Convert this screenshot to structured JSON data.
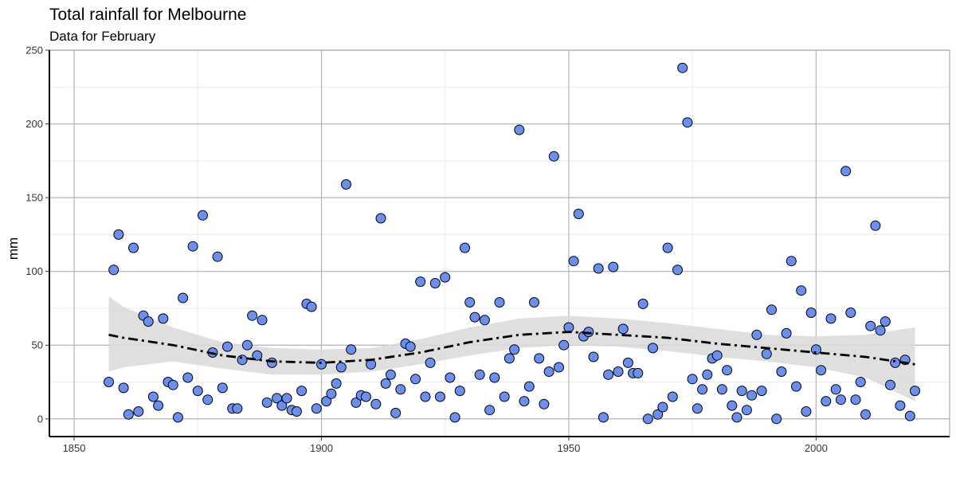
{
  "chart_data": {
    "type": "scatter",
    "title": "Total rainfall for Melbourne",
    "subtitle": "Data for February",
    "xlabel": "",
    "ylabel": "mm",
    "xlim": [
      1845,
      2027
    ],
    "ylim": [
      -12,
      250
    ],
    "x_ticks": [
      1850,
      1900,
      1950,
      2000
    ],
    "y_ticks": [
      0,
      50,
      100,
      150,
      200,
      250
    ],
    "grid": true,
    "legend": "none",
    "point_color": "#6b8ff0",
    "smooth_color": "#000000",
    "band_color": "#d9d9d9",
    "points": [
      [
        1857,
        25
      ],
      [
        1858,
        101
      ],
      [
        1859,
        125
      ],
      [
        1860,
        21
      ],
      [
        1861,
        3
      ],
      [
        1862,
        116
      ],
      [
        1863,
        5
      ],
      [
        1864,
        70
      ],
      [
        1865,
        66
      ],
      [
        1866,
        15
      ],
      [
        1867,
        9
      ],
      [
        1868,
        68
      ],
      [
        1869,
        25
      ],
      [
        1870,
        23
      ],
      [
        1871,
        1
      ],
      [
        1872,
        82
      ],
      [
        1873,
        28
      ],
      [
        1874,
        117
      ],
      [
        1875,
        19
      ],
      [
        1876,
        138
      ],
      [
        1877,
        13
      ],
      [
        1878,
        45
      ],
      [
        1879,
        110
      ],
      [
        1880,
        21
      ],
      [
        1881,
        49
      ],
      [
        1882,
        7
      ],
      [
        1883,
        7
      ],
      [
        1884,
        40
      ],
      [
        1885,
        50
      ],
      [
        1886,
        70
      ],
      [
        1887,
        43
      ],
      [
        1888,
        67
      ],
      [
        1889,
        11
      ],
      [
        1890,
        38
      ],
      [
        1891,
        14
      ],
      [
        1892,
        9
      ],
      [
        1893,
        14
      ],
      [
        1894,
        6
      ],
      [
        1895,
        5
      ],
      [
        1896,
        19
      ],
      [
        1897,
        78
      ],
      [
        1898,
        76
      ],
      [
        1899,
        7
      ],
      [
        1900,
        37
      ],
      [
        1901,
        12
      ],
      [
        1902,
        17
      ],
      [
        1903,
        24
      ],
      [
        1904,
        35
      ],
      [
        1905,
        159
      ],
      [
        1906,
        47
      ],
      [
        1907,
        11
      ],
      [
        1908,
        16
      ],
      [
        1909,
        15
      ],
      [
        1910,
        37
      ],
      [
        1911,
        10
      ],
      [
        1912,
        136
      ],
      [
        1913,
        24
      ],
      [
        1914,
        30
      ],
      [
        1915,
        4
      ],
      [
        1916,
        20
      ],
      [
        1917,
        51
      ],
      [
        1918,
        49
      ],
      [
        1919,
        27
      ],
      [
        1920,
        93
      ],
      [
        1921,
        15
      ],
      [
        1922,
        38
      ],
      [
        1923,
        92
      ],
      [
        1924,
        15
      ],
      [
        1925,
        96
      ],
      [
        1926,
        28
      ],
      [
        1927,
        1
      ],
      [
        1928,
        19
      ],
      [
        1929,
        116
      ],
      [
        1930,
        79
      ],
      [
        1931,
        69
      ],
      [
        1932,
        30
      ],
      [
        1933,
        67
      ],
      [
        1934,
        6
      ],
      [
        1935,
        28
      ],
      [
        1936,
        79
      ],
      [
        1937,
        15
      ],
      [
        1938,
        41
      ],
      [
        1939,
        47
      ],
      [
        1940,
        196
      ],
      [
        1941,
        12
      ],
      [
        1942,
        22
      ],
      [
        1943,
        79
      ],
      [
        1944,
        41
      ],
      [
        1945,
        10
      ],
      [
        1946,
        32
      ],
      [
        1947,
        178
      ],
      [
        1948,
        35
      ],
      [
        1949,
        50
      ],
      [
        1950,
        62
      ],
      [
        1951,
        107
      ],
      [
        1952,
        139
      ],
      [
        1953,
        56
      ],
      [
        1954,
        59
      ],
      [
        1955,
        42
      ],
      [
        1956,
        102
      ],
      [
        1957,
        1
      ],
      [
        1958,
        30
      ],
      [
        1959,
        103
      ],
      [
        1960,
        32
      ],
      [
        1961,
        61
      ],
      [
        1962,
        38
      ],
      [
        1963,
        31
      ],
      [
        1964,
        31
      ],
      [
        1965,
        78
      ],
      [
        1966,
        0
      ],
      [
        1967,
        48
      ],
      [
        1968,
        3
      ],
      [
        1969,
        8
      ],
      [
        1970,
        116
      ],
      [
        1971,
        15
      ],
      [
        1972,
        101
      ],
      [
        1973,
        238
      ],
      [
        1974,
        201
      ],
      [
        1975,
        27
      ],
      [
        1976,
        7
      ],
      [
        1977,
        20
      ],
      [
        1978,
        30
      ],
      [
        1979,
        41
      ],
      [
        1980,
        43
      ],
      [
        1981,
        20
      ],
      [
        1982,
        33
      ],
      [
        1983,
        9
      ],
      [
        1984,
        1
      ],
      [
        1985,
        19
      ],
      [
        1986,
        6
      ],
      [
        1987,
        16
      ],
      [
        1988,
        57
      ],
      [
        1989,
        19
      ],
      [
        1990,
        44
      ],
      [
        1991,
        74
      ],
      [
        1992,
        0
      ],
      [
        1993,
        32
      ],
      [
        1994,
        58
      ],
      [
        1995,
        107
      ],
      [
        1996,
        22
      ],
      [
        1997,
        87
      ],
      [
        1998,
        5
      ],
      [
        1999,
        72
      ],
      [
        2000,
        47
      ],
      [
        2001,
        33
      ],
      [
        2002,
        12
      ],
      [
        2003,
        68
      ],
      [
        2004,
        20
      ],
      [
        2005,
        13
      ],
      [
        2006,
        168
      ],
      [
        2007,
        72
      ],
      [
        2008,
        13
      ],
      [
        2009,
        25
      ],
      [
        2010,
        3
      ],
      [
        2011,
        63
      ],
      [
        2012,
        131
      ],
      [
        2013,
        60
      ],
      [
        2014,
        66
      ],
      [
        2015,
        23
      ],
      [
        2016,
        38
      ],
      [
        2017,
        9
      ],
      [
        2018,
        40
      ],
      [
        2019,
        2
      ],
      [
        2020,
        19
      ]
    ],
    "smooth_line": [
      [
        1857,
        57
      ],
      [
        1860,
        55
      ],
      [
        1870,
        50
      ],
      [
        1880,
        43
      ],
      [
        1890,
        39
      ],
      [
        1900,
        38
      ],
      [
        1910,
        40
      ],
      [
        1920,
        45
      ],
      [
        1930,
        52
      ],
      [
        1940,
        57
      ],
      [
        1950,
        59
      ],
      [
        1960,
        57
      ],
      [
        1970,
        55
      ],
      [
        1980,
        51
      ],
      [
        1990,
        48
      ],
      [
        2000,
        45
      ],
      [
        2010,
        42
      ],
      [
        2020,
        37
      ]
    ],
    "smooth_band": [
      [
        1857,
        32,
        83
      ],
      [
        1860,
        35,
        76
      ],
      [
        1870,
        39,
        62
      ],
      [
        1880,
        34,
        52
      ],
      [
        1890,
        30,
        48
      ],
      [
        1900,
        30,
        47
      ],
      [
        1910,
        32,
        48
      ],
      [
        1920,
        37,
        54
      ],
      [
        1930,
        43,
        62
      ],
      [
        1940,
        48,
        68
      ],
      [
        1950,
        50,
        70
      ],
      [
        1960,
        49,
        68
      ],
      [
        1970,
        46,
        65
      ],
      [
        1980,
        42,
        61
      ],
      [
        1990,
        39,
        57
      ],
      [
        2000,
        35,
        56
      ],
      [
        2010,
        28,
        57
      ],
      [
        2020,
        12,
        62
      ]
    ]
  }
}
